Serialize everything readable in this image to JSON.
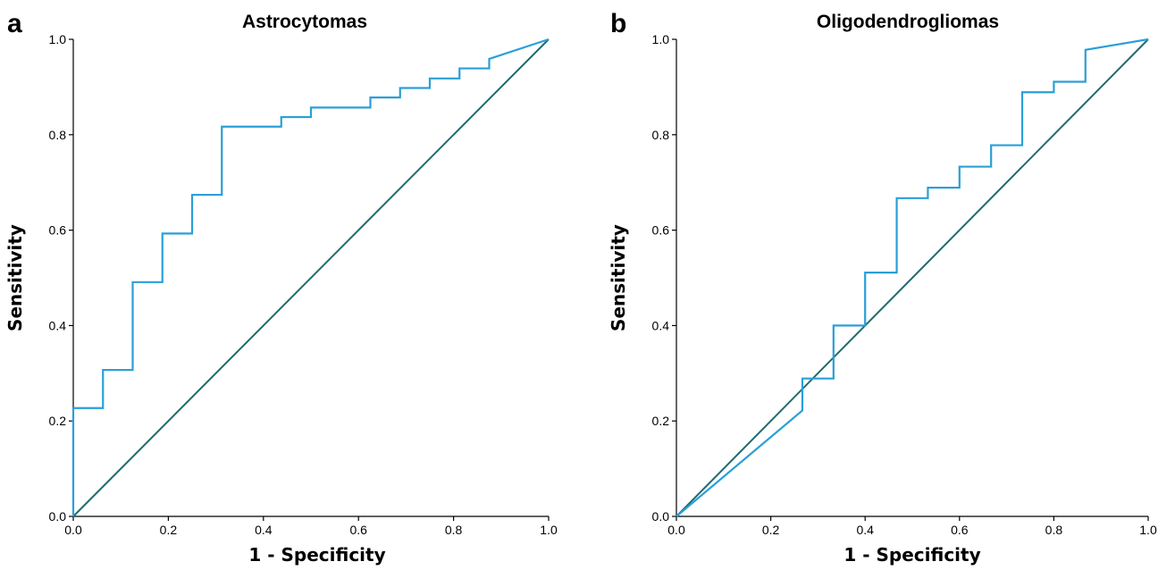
{
  "figure": {
    "panels": [
      "a",
      "b"
    ]
  },
  "chart_data": [
    {
      "type": "line",
      "panel": "a",
      "title": "Astrocytomas",
      "xlabel": "1 - Specificity",
      "ylabel": "Sensitivity",
      "xlim": [
        0,
        1
      ],
      "ylim": [
        0,
        1
      ],
      "xticks": [
        "0.0",
        "0.2",
        "0.4",
        "0.6",
        "0.8",
        "1.0"
      ],
      "yticks": [
        "0.0",
        "0.2",
        "0.4",
        "0.6",
        "0.8",
        "1.0"
      ],
      "colors": {
        "roc": "#2a9fd8",
        "reference": "#1f6b6e"
      },
      "series": [
        {
          "x": [
            0,
            0,
            0.0625,
            0.0625,
            0.125,
            0.125,
            0.1875,
            0.1875,
            0.25,
            0.25,
            0.3125,
            0.3125,
            0.4375,
            0.4375,
            0.5,
            0.5,
            0.625,
            0.625,
            0.6875,
            0.6875,
            0.75,
            0.75,
            0.8125,
            0.8125,
            0.875,
            0.875,
            1.0
          ],
          "y": [
            0,
            0.227,
            0.227,
            0.307,
            0.307,
            0.491,
            0.491,
            0.593,
            0.593,
            0.674,
            0.674,
            0.817,
            0.817,
            0.837,
            0.837,
            0.857,
            0.857,
            0.878,
            0.878,
            0.898,
            0.898,
            0.918,
            0.918,
            0.939,
            0.939,
            0.959,
            1.0
          ]
        },
        {
          "x": [
            0,
            1
          ],
          "y": [
            0,
            1
          ]
        }
      ]
    },
    {
      "type": "line",
      "panel": "b",
      "title": "Oligodendrogliomas",
      "xlabel": "1 - Specificity",
      "ylabel": "Sensitivity",
      "xlim": [
        0,
        1
      ],
      "ylim": [
        0,
        1
      ],
      "xticks": [
        "0.0",
        "0.2",
        "0.4",
        "0.6",
        "0.8",
        "1.0"
      ],
      "yticks": [
        "0.0",
        "0.2",
        "0.4",
        "0.6",
        "0.8",
        "1.0"
      ],
      "colors": {
        "roc": "#2a9fd8",
        "reference": "#1f6b6e"
      },
      "series": [
        {
          "x": [
            0,
            0.267,
            0.267,
            0.333,
            0.333,
            0.4,
            0.4,
            0.467,
            0.467,
            0.533,
            0.533,
            0.6,
            0.6,
            0.667,
            0.667,
            0.733,
            0.733,
            0.8,
            0.8,
            0.867,
            0.867,
            1.0
          ],
          "y": [
            0,
            0.222,
            0.289,
            0.289,
            0.4,
            0.4,
            0.511,
            0.511,
            0.667,
            0.667,
            0.689,
            0.689,
            0.733,
            0.733,
            0.778,
            0.778,
            0.889,
            0.889,
            0.911,
            0.911,
            0.978,
            1.0
          ]
        },
        {
          "x": [
            0,
            1
          ],
          "y": [
            0,
            1
          ]
        }
      ]
    }
  ]
}
